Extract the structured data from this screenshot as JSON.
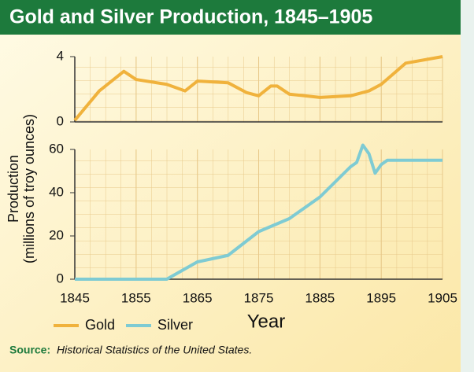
{
  "chart_data": {
    "type": "line",
    "title": "Gold and Silver Production, 1845–1905",
    "xlabel": "Year",
    "ylabel": [
      "Production",
      "(millions of troy ounces)"
    ],
    "xlim": [
      1845,
      1905
    ],
    "xticks": [
      1845,
      1855,
      1865,
      1875,
      1885,
      1895,
      1905
    ],
    "panels": [
      {
        "ylim": [
          0,
          4
        ],
        "yticks": [
          0,
          4
        ],
        "series": [
          {
            "name": "Gold",
            "color": "#f0b23c",
            "x": [
              1845,
              1849,
              1853,
              1855,
              1860,
              1863,
              1865,
              1870,
              1873,
              1875,
              1877,
              1878,
              1880,
              1885,
              1890,
              1893,
              1895,
              1899,
              1905
            ],
            "values": [
              0.1,
              1.9,
              3.1,
              2.6,
              2.3,
              1.9,
              2.5,
              2.4,
              1.8,
              1.6,
              2.2,
              2.2,
              1.7,
              1.5,
              1.6,
              1.9,
              2.3,
              3.6,
              4.0
            ]
          }
        ]
      },
      {
        "ylim": [
          0,
          60
        ],
        "yticks": [
          0,
          20,
          40,
          60
        ],
        "series": [
          {
            "name": "Silver",
            "color": "#7ecbd3",
            "x": [
              1845,
              1860,
              1865,
              1870,
              1875,
              1880,
              1885,
              1890,
              1891,
              1892,
              1893,
              1894,
              1895,
              1896,
              1905
            ],
            "values": [
              0,
              0,
              8,
              11,
              22,
              28,
              38,
              52,
              54,
              62,
              58,
              49,
              53,
              55,
              55
            ]
          }
        ]
      }
    ],
    "source_label": "Source:",
    "source": "Historical Statistics of the United States."
  }
}
